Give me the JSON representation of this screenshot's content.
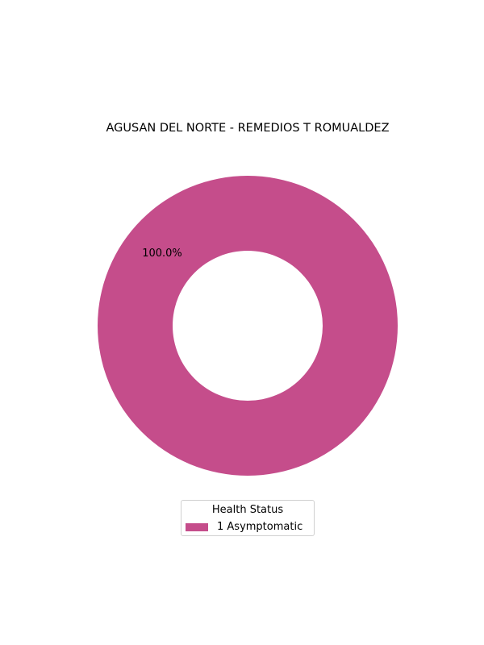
{
  "chart_data": {
    "type": "pie",
    "style": "donut",
    "title": "AGUSAN DEL NORTE - REMEDIOS T ROMUALDEZ",
    "slices": [
      {
        "label": "1  Asymptomatic",
        "value": 100.0,
        "pct_label": "100.0%",
        "color": "#c54d8b"
      }
    ],
    "legend": {
      "title": "Health Status",
      "placement": "bottom-center"
    }
  }
}
